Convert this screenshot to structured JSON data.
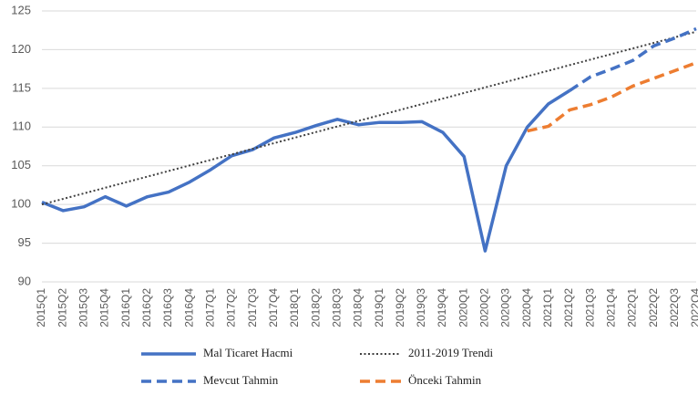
{
  "chart_data": {
    "type": "line",
    "categories": [
      "2015Q1",
      "2015Q2",
      "2015Q3",
      "2015Q4",
      "2016Q1",
      "2016Q2",
      "2016Q3",
      "2016Q4",
      "2017Q1",
      "2017Q2",
      "2017Q3",
      "2017Q4",
      "2018Q1",
      "2018Q2",
      "2018Q3",
      "2018Q4",
      "2019Q1",
      "2019Q2",
      "2019Q3",
      "2019Q4",
      "2020Q1",
      "2020Q2",
      "2020Q3",
      "2020Q4",
      "2021Q1",
      "2021Q2",
      "2021Q3",
      "2021Q4",
      "2022Q1",
      "2022Q2",
      "2022Q3",
      "2022Q4"
    ],
    "series": [
      {
        "name": "Mal Ticaret Hacmi",
        "color": "#4472c4",
        "style": "solid",
        "values": [
          100.3,
          99.2,
          99.7,
          101.0,
          99.8,
          101.0,
          101.6,
          102.9,
          104.5,
          106.3,
          107.1,
          108.6,
          109.3,
          110.2,
          111.0,
          110.3,
          110.6,
          110.6,
          110.7,
          109.3,
          106.2,
          94.0,
          105.0,
          110.0,
          113.0,
          114.7,
          null,
          null,
          null,
          null,
          null,
          null
        ]
      },
      {
        "name": "2011-2019 Trendi",
        "color": "#404040",
        "style": "dotted",
        "values": [
          100.0,
          100.72,
          101.44,
          102.16,
          102.88,
          103.6,
          104.32,
          105.04,
          105.76,
          106.48,
          107.2,
          107.92,
          108.64,
          109.36,
          110.08,
          110.8,
          111.52,
          112.24,
          112.96,
          113.68,
          114.4,
          115.12,
          115.84,
          116.56,
          117.28,
          118.0,
          118.72,
          119.44,
          120.16,
          120.88,
          121.6,
          122.32
        ]
      },
      {
        "name": "Mevcut Tahmin",
        "color": "#4472c4",
        "style": "dashed",
        "values": [
          null,
          null,
          null,
          null,
          null,
          null,
          null,
          null,
          null,
          null,
          null,
          null,
          null,
          null,
          null,
          null,
          null,
          null,
          null,
          null,
          null,
          null,
          null,
          null,
          null,
          114.7,
          116.5,
          117.5,
          118.6,
          120.5,
          121.5,
          122.7
        ]
      },
      {
        "name": "Önceki Tahmin",
        "color": "#ed7d31",
        "style": "dashed",
        "values": [
          null,
          null,
          null,
          null,
          null,
          null,
          null,
          null,
          null,
          null,
          null,
          null,
          null,
          null,
          null,
          null,
          null,
          null,
          null,
          null,
          null,
          null,
          null,
          109.5,
          110.1,
          112.2,
          112.9,
          113.9,
          115.3,
          116.3,
          117.3,
          118.3
        ]
      }
    ],
    "ylim": [
      90,
      125
    ],
    "yticks": [
      90,
      95,
      100,
      105,
      110,
      115,
      120,
      125
    ],
    "grid": true,
    "legend": "bottom"
  }
}
